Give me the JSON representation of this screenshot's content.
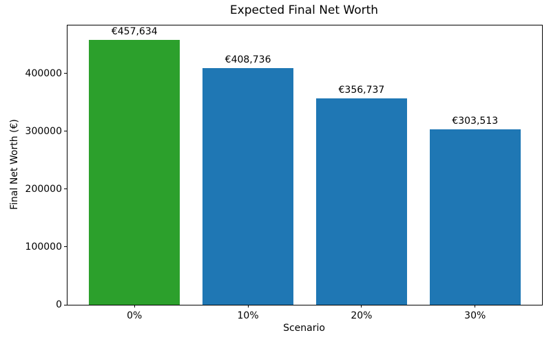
{
  "chart_data": {
    "type": "bar",
    "title": "Expected Final Net Worth",
    "xlabel": "Scenario",
    "ylabel": "Final Net Worth (€)",
    "categories": [
      "0%",
      "10%",
      "20%",
      "30%"
    ],
    "values": [
      457634,
      408736,
      356737,
      303513
    ],
    "bar_labels": [
      "€457,634",
      "€408,736",
      "€356,737",
      "€303,513"
    ],
    "bar_colors": [
      "#2ca02c",
      "#1f77b4",
      "#1f77b4",
      "#1f77b4"
    ],
    "ylim": [
      0,
      483000
    ],
    "yticks": [
      0,
      100000,
      200000,
      300000,
      400000
    ],
    "ytick_labels": [
      "0",
      "100000",
      "200000",
      "300000",
      "400000"
    ],
    "bar_width_fraction": 0.8,
    "x_margin_fraction": 0.19,
    "grid": false,
    "legend": "none"
  }
}
